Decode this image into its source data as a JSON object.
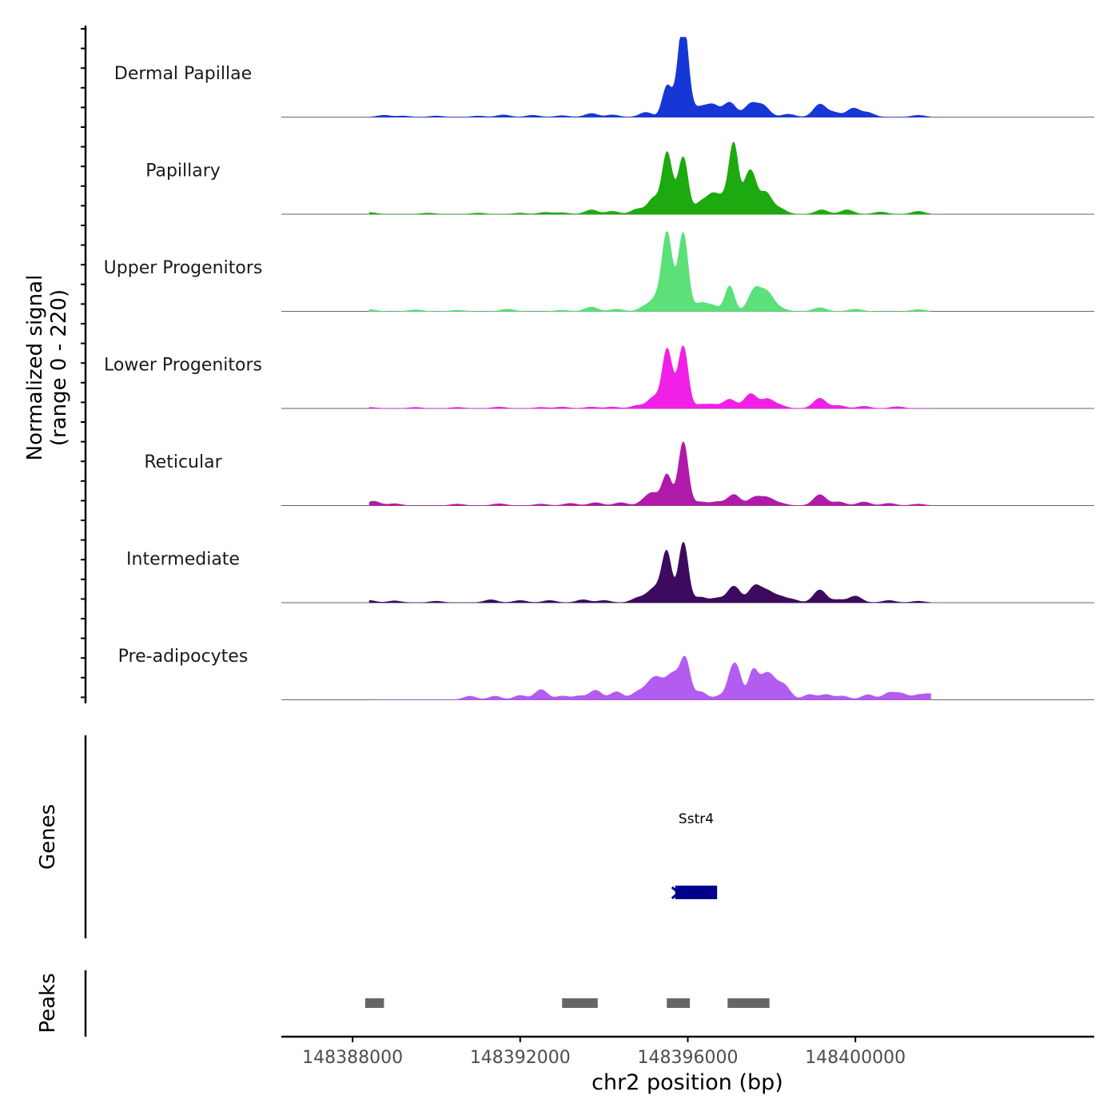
{
  "chart_data": {
    "type": "area",
    "title": "",
    "ylabel": "Normalized signal",
    "ylabel_range": "(range 0 - 220)",
    "xlabel": "chr2 position (bp)",
    "xlim": [
      148386300,
      148405700
    ],
    "ylim": [
      0,
      220
    ],
    "x_ticks": [
      148388000,
      148392000,
      148396000,
      148400000
    ],
    "x_tick_labels": [
      "148388000",
      "148392000",
      "148396000",
      "148400000"
    ],
    "tracks": [
      {
        "name": "Dermal Papillae",
        "color": "#1637d6",
        "peaks": [
          [
            148388750,
            5
          ],
          [
            148389200,
            3
          ],
          [
            148390000,
            3
          ],
          [
            148391000,
            3
          ],
          [
            148391600,
            6
          ],
          [
            148392300,
            5
          ],
          [
            148393000,
            4
          ],
          [
            148393700,
            10
          ],
          [
            148394200,
            6
          ],
          [
            148395000,
            13
          ],
          [
            148395500,
            80
          ],
          [
            148395800,
            48
          ],
          [
            148395900,
            40
          ],
          [
            148395900,
            190
          ],
          [
            148396300,
            25
          ],
          [
            148396600,
            32
          ],
          [
            148397000,
            40
          ],
          [
            148397500,
            35
          ],
          [
            148397800,
            30
          ],
          [
            148398400,
            8
          ],
          [
            148399150,
            35
          ],
          [
            148399500,
            12
          ],
          [
            148399950,
            24
          ],
          [
            148400300,
            12
          ],
          [
            148401500,
            5
          ]
        ]
      },
      {
        "name": "Papillary",
        "color": "#1da910",
        "peaks": [
          [
            148388400,
            5
          ],
          [
            148389800,
            3
          ],
          [
            148391000,
            3
          ],
          [
            148392000,
            3
          ],
          [
            148392600,
            5
          ],
          [
            148393000,
            4
          ],
          [
            148393700,
            12
          ],
          [
            148394200,
            8
          ],
          [
            148394800,
            14
          ],
          [
            148395200,
            45
          ],
          [
            148395500,
            150
          ],
          [
            148395700,
            40
          ],
          [
            148395900,
            140
          ],
          [
            148396300,
            30
          ],
          [
            148396600,
            50
          ],
          [
            148396900,
            40
          ],
          [
            148397100,
            180
          ],
          [
            148397400,
            70
          ],
          [
            148397550,
            80
          ],
          [
            148397850,
            60
          ],
          [
            148398200,
            15
          ],
          [
            148399200,
            12
          ],
          [
            148399800,
            12
          ],
          [
            148400600,
            6
          ],
          [
            148401500,
            8
          ]
        ]
      },
      {
        "name": "Upper Progenitors",
        "color": "#5ce07a",
        "peaks": [
          [
            148388400,
            5
          ],
          [
            148389500,
            4
          ],
          [
            148390500,
            3
          ],
          [
            148391700,
            6
          ],
          [
            148393000,
            3
          ],
          [
            148393700,
            12
          ],
          [
            148394300,
            6
          ],
          [
            148395000,
            14
          ],
          [
            148395300,
            40
          ],
          [
            148395500,
            185
          ],
          [
            148395700,
            48
          ],
          [
            148395900,
            196
          ],
          [
            148396300,
            22
          ],
          [
            148396600,
            15
          ],
          [
            148397000,
            70
          ],
          [
            148397600,
            60
          ],
          [
            148397900,
            48
          ],
          [
            148398200,
            8
          ],
          [
            148399150,
            10
          ],
          [
            148400000,
            6
          ],
          [
            148401500,
            5
          ]
        ]
      },
      {
        "name": "Lower Progenitors",
        "color": "#f020e6",
        "peaks": [
          [
            148388400,
            3
          ],
          [
            148389500,
            3
          ],
          [
            148390500,
            3
          ],
          [
            148391500,
            4
          ],
          [
            148392500,
            3
          ],
          [
            148393000,
            4
          ],
          [
            148393700,
            4
          ],
          [
            148394200,
            4
          ],
          [
            148394800,
            8
          ],
          [
            148395200,
            32
          ],
          [
            148395500,
            145
          ],
          [
            148395700,
            40
          ],
          [
            148395900,
            155
          ],
          [
            148396300,
            10
          ],
          [
            148396600,
            10
          ],
          [
            148397000,
            25
          ],
          [
            148397500,
            40
          ],
          [
            148397900,
            25
          ],
          [
            148398200,
            8
          ],
          [
            148399150,
            28
          ],
          [
            148399600,
            8
          ],
          [
            148400200,
            6
          ],
          [
            148401000,
            5
          ]
        ]
      },
      {
        "name": "Reticular",
        "color": "#b01aa8",
        "peaks": [
          [
            148388500,
            12
          ],
          [
            148389000,
            5
          ],
          [
            148390500,
            4
          ],
          [
            148391500,
            5
          ],
          [
            148392500,
            4
          ],
          [
            148393200,
            6
          ],
          [
            148393800,
            8
          ],
          [
            148394400,
            8
          ],
          [
            148395000,
            15
          ],
          [
            148395200,
            28
          ],
          [
            148395500,
            80
          ],
          [
            148395800,
            25
          ],
          [
            148395900,
            155
          ],
          [
            148396300,
            10
          ],
          [
            148396700,
            10
          ],
          [
            148397100,
            30
          ],
          [
            148397600,
            22
          ],
          [
            148397900,
            20
          ],
          [
            148398200,
            6
          ],
          [
            148399150,
            30
          ],
          [
            148399600,
            10
          ],
          [
            148400200,
            10
          ],
          [
            148400800,
            6
          ],
          [
            148401500,
            4
          ]
        ]
      },
      {
        "name": "Intermediate",
        "color": "#3c0a5e",
        "peaks": [
          [
            148388400,
            6
          ],
          [
            148389000,
            5
          ],
          [
            148390000,
            4
          ],
          [
            148391300,
            8
          ],
          [
            148392000,
            6
          ],
          [
            148392700,
            6
          ],
          [
            148393500,
            8
          ],
          [
            148394000,
            6
          ],
          [
            148394800,
            12
          ],
          [
            148395100,
            20
          ],
          [
            148395300,
            32
          ],
          [
            148395500,
            128
          ],
          [
            148395800,
            20
          ],
          [
            148395900,
            150
          ],
          [
            148396300,
            15
          ],
          [
            148396700,
            12
          ],
          [
            148397100,
            45
          ],
          [
            148397600,
            45
          ],
          [
            148397900,
            28
          ],
          [
            148398200,
            15
          ],
          [
            148398500,
            8
          ],
          [
            148399150,
            35
          ],
          [
            148399600,
            8
          ],
          [
            148400000,
            18
          ],
          [
            148400800,
            6
          ],
          [
            148401500,
            4
          ]
        ]
      },
      {
        "name": "Pre-adipocytes",
        "color": "#b25cf0",
        "peaks": [
          [
            148390800,
            10
          ],
          [
            148391400,
            10
          ],
          [
            148392000,
            12
          ],
          [
            148392500,
            28
          ],
          [
            148393000,
            10
          ],
          [
            148393400,
            10
          ],
          [
            148393800,
            26
          ],
          [
            148394300,
            22
          ],
          [
            148394800,
            20
          ],
          [
            148395100,
            35
          ],
          [
            148395300,
            42
          ],
          [
            148395600,
            52
          ],
          [
            148395800,
            38
          ],
          [
            148395950,
            90
          ],
          [
            148396300,
            22
          ],
          [
            148396800,
            12
          ],
          [
            148397050,
            65
          ],
          [
            148397200,
            62
          ],
          [
            148397550,
            72
          ],
          [
            148397800,
            48
          ],
          [
            148398000,
            45
          ],
          [
            148398300,
            38
          ],
          [
            148398900,
            14
          ],
          [
            148399300,
            14
          ],
          [
            148399700,
            10
          ],
          [
            148400300,
            14
          ],
          [
            148400800,
            18
          ],
          [
            148401100,
            16
          ],
          [
            148401500,
            12
          ],
          [
            148401800,
            15
          ]
        ]
      }
    ],
    "genes": [
      {
        "name": "Sstr4",
        "start": 148395700,
        "end": 148396700,
        "strand": "-",
        "color": "#00008b"
      }
    ],
    "peaks_track": [
      {
        "start": 148388300,
        "end": 148388750
      },
      {
        "start": 148393000,
        "end": 148393850
      },
      {
        "start": 148395500,
        "end": 148396050
      },
      {
        "start": 148396950,
        "end": 148397950
      }
    ],
    "panel_labels": {
      "genes": "Genes",
      "peaks": "Peaks"
    }
  }
}
